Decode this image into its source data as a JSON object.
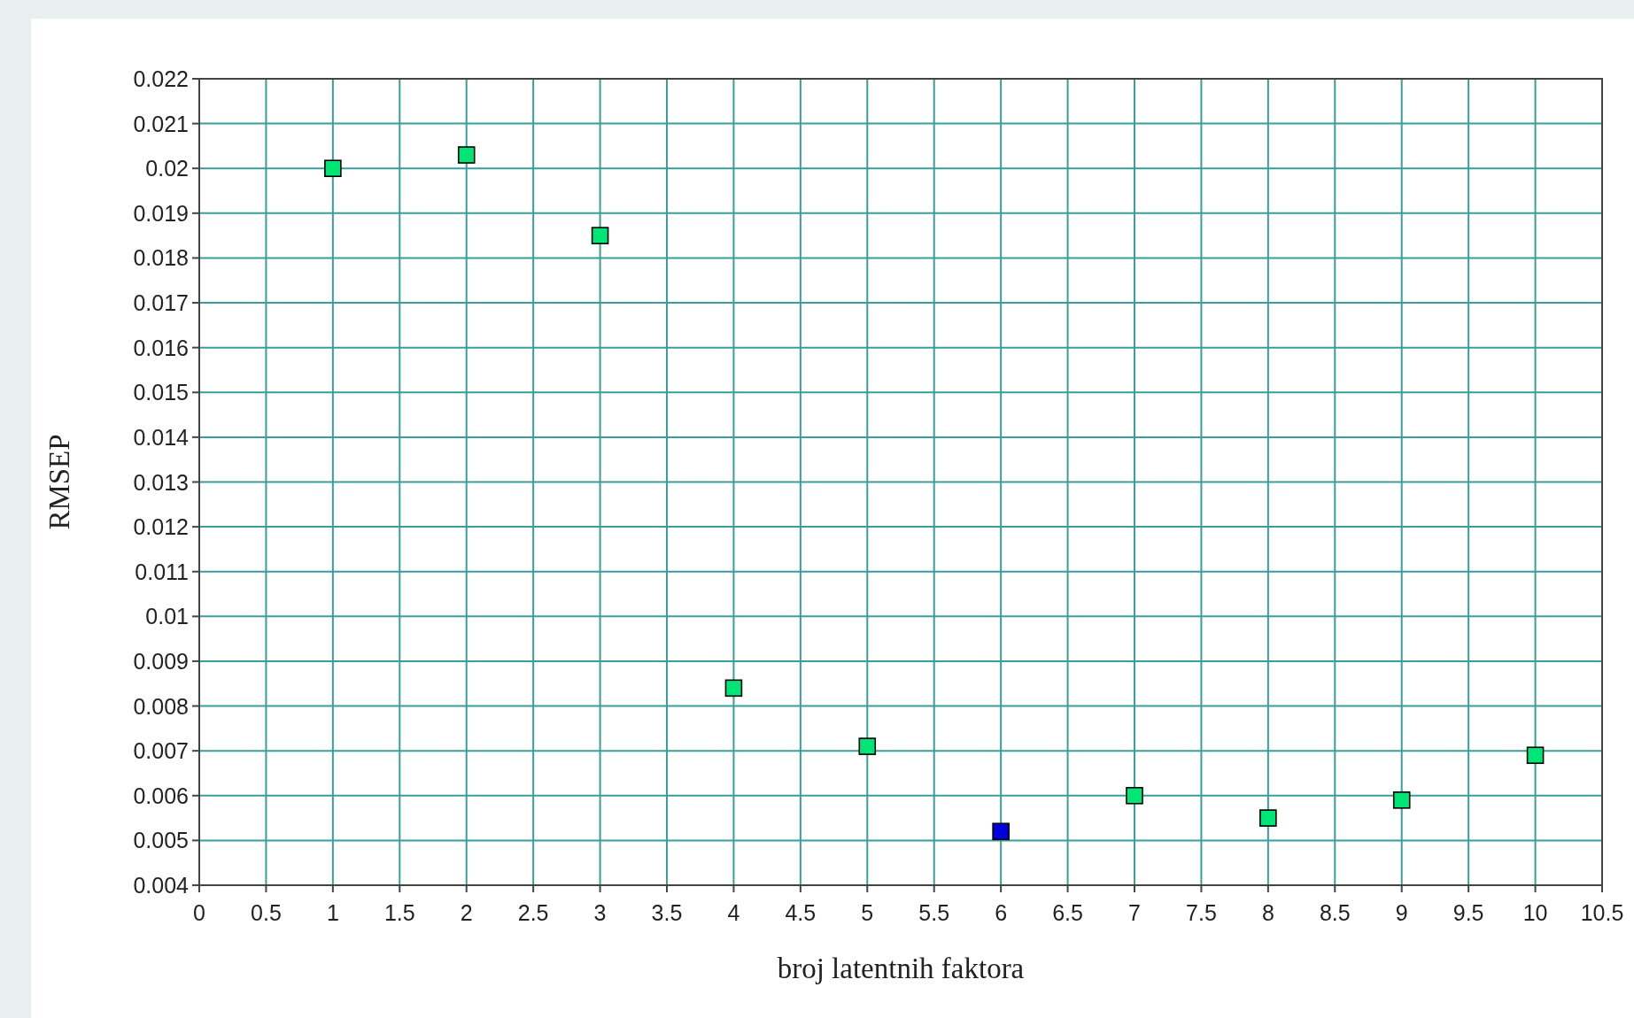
{
  "chart_data": {
    "type": "scatter",
    "xlabel": "broj latentnih faktora",
    "ylabel": "RMSEP",
    "x": [
      1,
      2,
      3,
      4,
      5,
      6,
      7,
      8,
      9,
      10
    ],
    "series": [
      {
        "values": [
          0.02,
          0.0203,
          0.0185,
          0.0084,
          0.0071,
          0.0052,
          0.006,
          0.0055,
          0.0059,
          0.0069
        ],
        "colors": [
          "#00e676",
          "#00e676",
          "#00e676",
          "#00e676",
          "#00e676",
          "#0000dd",
          "#00e676",
          "#00e676",
          "#00e676",
          "#00e676"
        ]
      }
    ],
    "xlim": [
      0,
      10.5
    ],
    "xticks": [
      0,
      0.5,
      1,
      1.5,
      2,
      2.5,
      3,
      3.5,
      4,
      4.5,
      5,
      5.5,
      6,
      6.5,
      7,
      7.5,
      8,
      8.5,
      9,
      9.5,
      10,
      10.5
    ],
    "ylim": [
      0.004,
      0.022
    ],
    "yticks": [
      0.004,
      0.005,
      0.006,
      0.007,
      0.008,
      0.009,
      0.01,
      0.011,
      0.012,
      0.013,
      0.014,
      0.015,
      0.016,
      0.017,
      0.018,
      0.019,
      0.02,
      0.021,
      0.022
    ],
    "grid": true,
    "marker": "square"
  }
}
